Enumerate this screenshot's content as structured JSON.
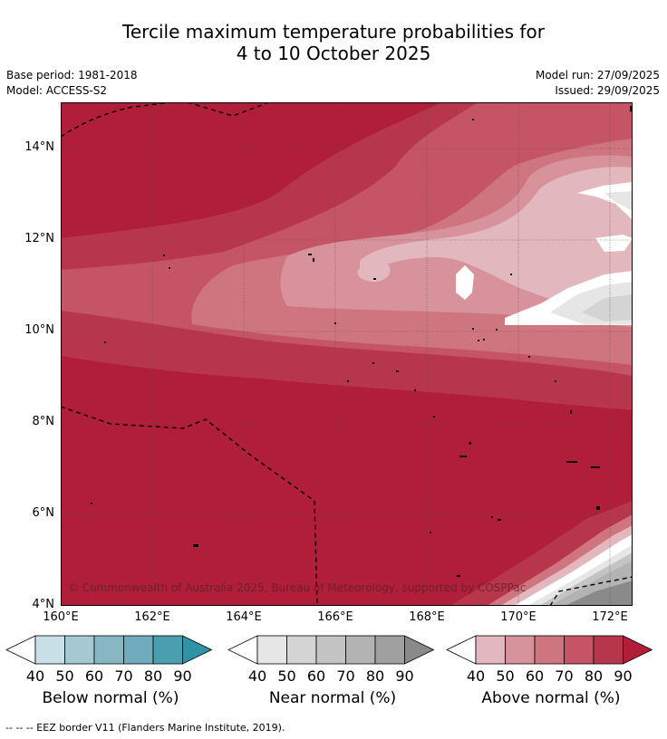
{
  "title": {
    "line1": "Tercile maximum temperature probabilities for",
    "line2": "4 to 10 October 2025"
  },
  "meta": {
    "base_period": "Base period: 1981-2018",
    "model": "Model: ACCESS-S2",
    "model_run": "Model run: 27/09/2025",
    "issued": "Issued: 29/09/2025"
  },
  "axes": {
    "lat_labels": [
      "14°N",
      "12°N",
      "10°N",
      "8°N",
      "6°N",
      "4°N"
    ],
    "lon_labels": [
      "160°E",
      "162°E",
      "164°E",
      "166°E",
      "168°E",
      "170°E",
      "172°E"
    ],
    "lat_range": [
      4,
      15
    ],
    "lon_range": [
      160,
      172.5
    ]
  },
  "copyright": "© Commonwealth of Australia 2025, Bureau of Meteorology, supported by COSPPac",
  "legend": {
    "below": {
      "label": "Below normal (%)",
      "ticks": [
        "40",
        "50",
        "60",
        "70",
        "80",
        "90"
      ],
      "colors": [
        "#ffffff",
        "#c8e0e6",
        "#a6c9d1",
        "#88b7c4",
        "#6eacbd",
        "#4a9eb0",
        "#2f93a5"
      ]
    },
    "near": {
      "label": "Near normal (%)",
      "ticks": [
        "40",
        "50",
        "60",
        "70",
        "80",
        "90"
      ],
      "colors": [
        "#ffffff",
        "#e6e6e6",
        "#d4d4d4",
        "#c4c4c4",
        "#b3b3b3",
        "#a0a0a0",
        "#8a8a8a"
      ]
    },
    "above": {
      "label": "Above normal (%)",
      "ticks": [
        "40",
        "50",
        "60",
        "70",
        "80",
        "90"
      ],
      "colors": [
        "#ffffff",
        "#e2b8be",
        "#d7929c",
        "#cf7580",
        "#c45466",
        "#b8364c",
        "#b01e39"
      ]
    }
  },
  "footnote": "-- -- -- EEZ border V11 (Flanders Marine Institute, 2019)."
}
